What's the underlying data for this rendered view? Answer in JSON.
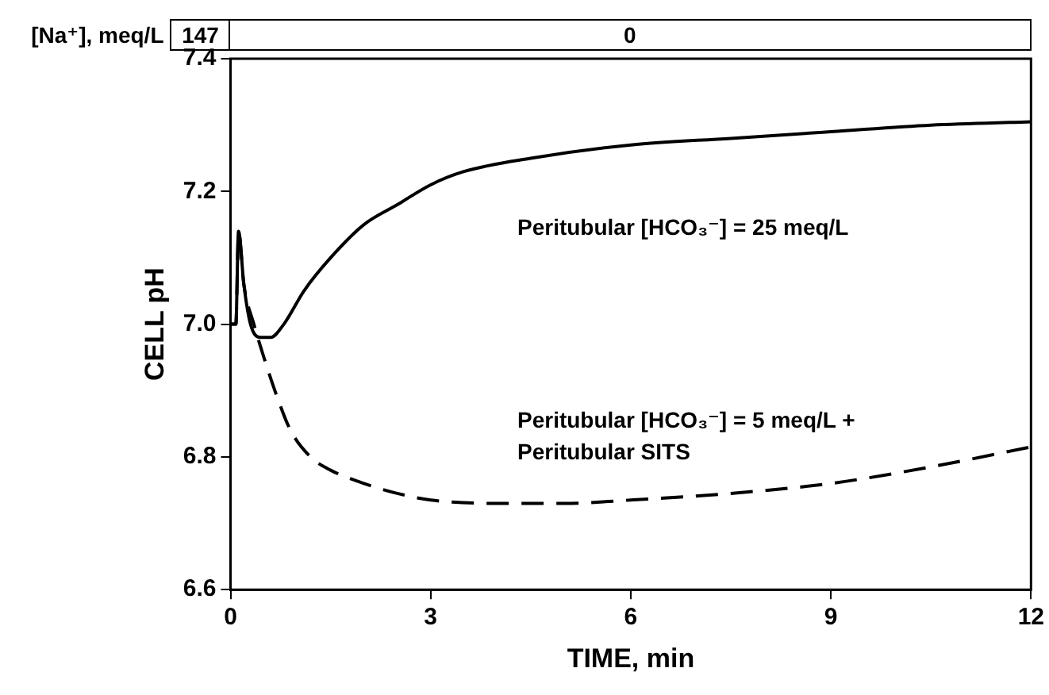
{
  "chart_data": {
    "type": "line",
    "xlabel": "TIME, min",
    "ylabel": "CELL pH",
    "xlim": [
      0,
      12
    ],
    "xticks": [
      0,
      3,
      6,
      9,
      12
    ],
    "ylim": [
      6.6,
      7.4
    ],
    "yticks": [
      6.6,
      6.8,
      {
        "value": 7.0,
        "label": "7.0"
      },
      7.2,
      7.4
    ],
    "legend": false,
    "marker": "none",
    "annotations": [
      "[Na⁺], meq/L",
      "147",
      "0"
    ],
    "series": [
      {
        "name": "Peritubular [HCO₃⁻] = 25 meq/L",
        "color": "#000000",
        "line_style": "solid",
        "x": [
          0,
          0.08,
          0.12,
          0.2,
          0.3,
          0.45,
          0.6,
          0.8,
          1.1,
          1.5,
          2.0,
          2.5,
          3.0,
          3.5,
          4.5,
          6,
          7.5,
          9,
          10.5,
          12
        ],
        "values": [
          7.0,
          7.0,
          7.14,
          7.06,
          7.0,
          6.98,
          6.98,
          7.0,
          7.05,
          7.1,
          7.15,
          7.18,
          7.21,
          7.23,
          7.25,
          7.27,
          7.28,
          7.29,
          7.3,
          7.305
        ]
      },
      {
        "name": "Peritubular [HCO₃⁻] = 5 meq/L + Peritubular SITS",
        "color": "#000000",
        "line_style": "dashed",
        "x": [
          0,
          0.08,
          0.12,
          0.2,
          0.35,
          0.5,
          0.7,
          0.9,
          1.2,
          1.5,
          2.0,
          2.5,
          3.0,
          4.0,
          5.0,
          6.0,
          7.5,
          9.0,
          10.5,
          12
        ],
        "values": [
          7.0,
          7.0,
          7.14,
          7.06,
          7.0,
          6.95,
          6.89,
          6.84,
          6.8,
          6.78,
          6.76,
          6.745,
          6.735,
          6.73,
          6.73,
          6.735,
          6.745,
          6.76,
          6.785,
          6.815
        ]
      }
    ]
  }
}
